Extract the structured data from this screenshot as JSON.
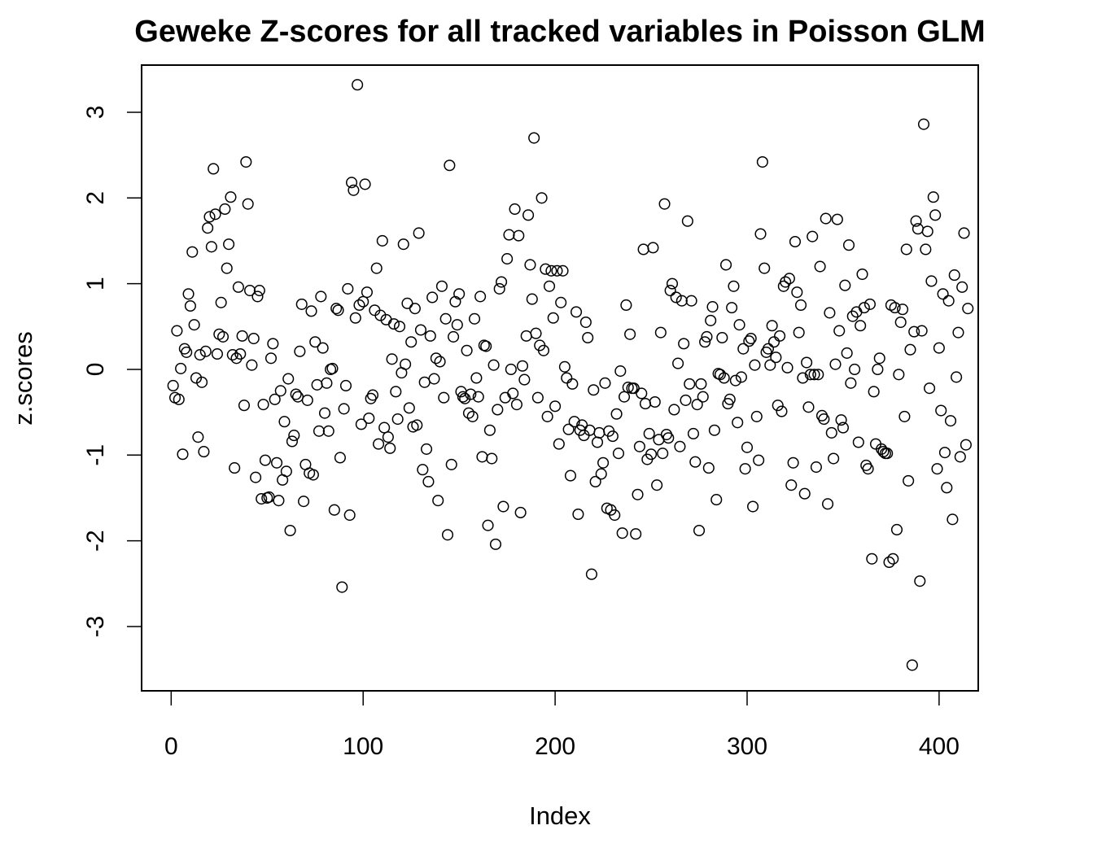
{
  "chart_data": {
    "type": "scatter",
    "title": "Geweke Z-scores for all tracked variables in Poisson GLM",
    "xlabel": "Index",
    "ylabel": "z.scores",
    "xlim": [
      -15.4,
      420.4
    ],
    "ylim": [
      -3.75,
      3.55
    ],
    "xticks": [
      0,
      100,
      200,
      300,
      400
    ],
    "yticks": [
      -3,
      -2,
      -1,
      0,
      1,
      2,
      3
    ],
    "xtick_labels": [
      "0",
      "100",
      "200",
      "300",
      "400"
    ],
    "ytick_labels": [
      "-3",
      "-2",
      "-1",
      "0",
      "1",
      "2",
      "3"
    ],
    "marker": "open-circle",
    "marker_color": "#000000",
    "grid": false,
    "legend": "none",
    "y": [
      -0.19,
      -0.33,
      0.45,
      -0.35,
      0.01,
      -0.99,
      0.24,
      0.2,
      0.88,
      0.74,
      1.37,
      0.52,
      -0.1,
      -0.79,
      0.17,
      -0.15,
      -0.96,
      0.21,
      1.65,
      1.78,
      1.43,
      2.34,
      1.81,
      0.18,
      0.41,
      0.78,
      0.38,
      1.87,
      1.18,
      1.46,
      2.01,
      0.17,
      -1.15,
      0.13,
      0.96,
      0.18,
      0.39,
      -0.42,
      2.42,
      1.93,
      0.92,
      0.05,
      0.36,
      -1.26,
      0.85,
      0.92,
      -1.51,
      -0.41,
      -1.06,
      -1.5,
      -1.49,
      0.13,
      0.3,
      -0.35,
      -1.09,
      -1.53,
      -0.25,
      -1.29,
      -0.61,
      -1.19,
      -0.11,
      -1.88,
      -0.84,
      -0.77,
      -0.29,
      -0.32,
      0.21,
      0.76,
      -1.54,
      -1.11,
      -0.36,
      -1.21,
      0.68,
      -1.23,
      0.32,
      -0.18,
      -0.72,
      0.85,
      0.25,
      -0.51,
      -0.16,
      -0.72,
      0.0,
      0.01,
      -1.64,
      0.71,
      0.69,
      -1.03,
      -2.54,
      -0.46,
      -0.19,
      0.94,
      -1.7,
      2.18,
      2.09,
      0.6,
      3.32,
      0.75,
      -0.64,
      0.79,
      2.16,
      0.9,
      -0.57,
      -0.34,
      -0.3,
      0.69,
      1.18,
      -0.87,
      0.63,
      1.5,
      -0.68,
      0.58,
      -0.79,
      -0.92,
      0.12,
      0.53,
      -0.26,
      -0.58,
      0.5,
      -0.04,
      1.46,
      0.06,
      0.77,
      -0.45,
      0.32,
      -0.67,
      0.71,
      -0.65,
      1.59,
      0.46,
      -1.17,
      -0.15,
      -0.93,
      -1.31,
      0.39,
      0.84,
      -0.11,
      0.13,
      -1.53,
      0.09,
      0.97,
      -0.33,
      0.59,
      -1.93,
      2.38,
      -1.11,
      0.38,
      0.79,
      0.52,
      0.88,
      -0.26,
      -0.32,
      -0.34,
      0.22,
      -0.51,
      -0.29,
      -0.55,
      0.59,
      -0.1,
      -0.32,
      0.85,
      -1.02,
      0.28,
      0.27,
      -1.82,
      -0.71,
      -1.04,
      0.05,
      -2.04,
      -0.47,
      0.94,
      1.02,
      -1.6,
      -0.33,
      1.29,
      1.57,
      0.0,
      -0.28,
      1.87,
      -0.41,
      1.56,
      -1.67,
      0.04,
      -0.12,
      0.39,
      1.8,
      1.22,
      0.82,
      2.7,
      0.42,
      -0.33,
      0.28,
      2.0,
      0.22,
      1.17,
      -0.55,
      0.97,
      1.15,
      0.6,
      -0.43,
      1.15,
      -0.87,
      0.78,
      1.15,
      0.03,
      -0.1,
      -0.7,
      -1.24,
      -0.17,
      -0.61,
      0.67,
      -1.69,
      -0.71,
      -0.65,
      -0.77,
      0.55,
      0.37,
      -0.71,
      -2.39,
      -0.24,
      -1.31,
      -0.85,
      -0.74,
      -1.22,
      -1.09,
      -0.16,
      -1.62,
      -0.72,
      -1.64,
      -0.78,
      -1.7,
      -0.52,
      -0.98,
      -0.02,
      -1.91,
      -0.32,
      0.75,
      -0.21,
      0.41,
      -0.22,
      -0.22,
      -1.92,
      -1.46,
      -0.9,
      -0.28,
      1.4,
      -0.4,
      -1.05,
      -0.75,
      -0.99,
      1.42,
      -0.38,
      -1.35,
      -0.82,
      0.43,
      -0.98,
      1.93,
      -0.76,
      -0.8,
      0.92,
      1.0,
      -0.47,
      0.84,
      0.07,
      -0.9,
      0.8,
      0.3,
      -0.36,
      1.73,
      -0.17,
      0.8,
      -0.75,
      -1.08,
      -0.41,
      -1.88,
      -0.17,
      -0.32,
      0.32,
      0.38,
      -1.15,
      0.57,
      0.73,
      -0.71,
      -1.52,
      -0.05,
      -0.06,
      0.37,
      -0.1,
      1.22,
      -0.4,
      -0.35,
      0.72,
      0.97,
      -0.13,
      -0.62,
      0.52,
      -0.09,
      0.24,
      -1.16,
      -0.91,
      0.33,
      0.36,
      -1.6,
      0.05,
      -0.55,
      -1.06,
      1.58,
      2.42,
      1.18,
      0.2,
      0.24,
      0.05,
      0.51,
      0.32,
      0.14,
      -0.42,
      0.39,
      -0.49,
      0.97,
      1.02,
      0.02,
      1.06,
      -1.35,
      -1.09,
      1.49,
      0.9,
      0.43,
      0.75,
      -0.1,
      -1.45,
      0.08,
      -0.44,
      -0.06,
      1.55,
      -0.06,
      -1.14,
      -0.06,
      1.2,
      -0.54,
      -0.58,
      1.76,
      -1.57,
      0.66,
      -0.74,
      -1.04,
      0.06,
      1.75,
      0.45,
      -0.59,
      -0.68,
      0.98,
      0.19,
      1.45,
      -0.16,
      0.62,
      -0.0,
      0.67,
      -0.85,
      0.51,
      1.11,
      0.72,
      -1.12,
      -1.16,
      0.76,
      -2.21,
      -0.26,
      -0.87,
      0.0,
      0.13,
      -0.93,
      -0.96,
      -0.98,
      -0.98,
      -2.25,
      0.75,
      -2.21,
      0.72,
      -1.87,
      -0.06,
      0.55,
      0.7,
      -0.55,
      1.4,
      -1.3,
      0.23,
      -3.45,
      0.44,
      1.73,
      1.64,
      -2.47,
      0.45,
      2.86,
      1.4,
      1.61,
      -0.22,
      1.03,
      2.01,
      1.8,
      -1.16,
      0.25,
      -0.48,
      0.88,
      -0.97,
      -1.38,
      0.8,
      -0.6,
      -1.75,
      1.1,
      -0.09,
      0.43,
      -1.02,
      0.96,
      1.59,
      -0.88,
      0.71
    ]
  }
}
